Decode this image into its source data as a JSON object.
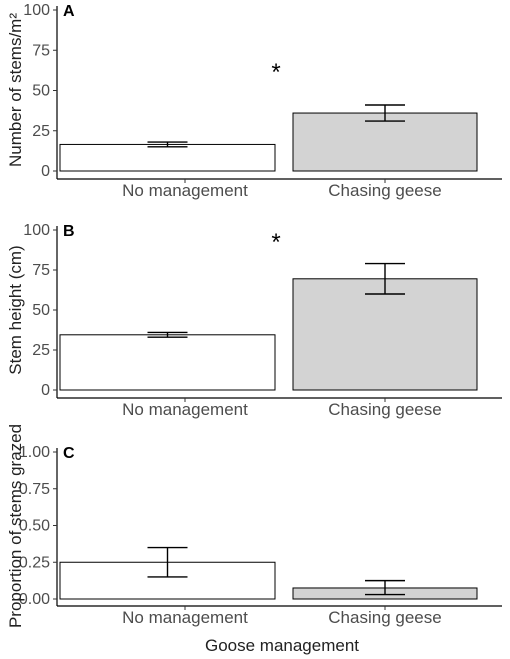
{
  "x_axis_title": "Goose management",
  "chart_data": [
    {
      "type": "bar",
      "panel_label": "A",
      "ylabel": "Number of stems/m²",
      "categories": [
        "No management",
        "Chasing geese"
      ],
      "values": [
        16.5,
        36
      ],
      "error_low": [
        15,
        31
      ],
      "error_high": [
        18,
        41
      ],
      "bar_colors": [
        "#ffffff",
        "#d3d3d3"
      ],
      "ylim": [
        0,
        100
      ],
      "yticks": [
        0,
        25,
        50,
        75,
        100
      ],
      "ytick_labels": [
        "0",
        "25",
        "50",
        "75",
        "100"
      ],
      "significance_marker": "*",
      "grid": false
    },
    {
      "type": "bar",
      "panel_label": "B",
      "ylabel": "Stem height (cm)",
      "categories": [
        "No management",
        "Chasing geese"
      ],
      "values": [
        34.5,
        69.5
      ],
      "error_low": [
        33,
        60
      ],
      "error_high": [
        36,
        79
      ],
      "bar_colors": [
        "#ffffff",
        "#d3d3d3"
      ],
      "ylim": [
        0,
        100
      ],
      "yticks": [
        0,
        25,
        50,
        75,
        100
      ],
      "ytick_labels": [
        "0",
        "25",
        "50",
        "75",
        "100"
      ],
      "significance_marker": "*",
      "grid": false
    },
    {
      "type": "bar",
      "panel_label": "C",
      "ylabel": "Proportion of stems grazed",
      "categories": [
        "No management",
        "Chasing geese"
      ],
      "values": [
        0.25,
        0.075
      ],
      "error_low": [
        0.15,
        0.03
      ],
      "error_high": [
        0.35,
        0.125
      ],
      "bar_colors": [
        "#ffffff",
        "#d3d3d3"
      ],
      "ylim": [
        0,
        1
      ],
      "yticks": [
        0,
        0.25,
        0.5,
        0.75,
        1
      ],
      "ytick_labels": [
        "0.00",
        "0.25",
        "0.50",
        "0.75",
        "1.00"
      ],
      "significance_marker": "",
      "grid": false
    }
  ]
}
